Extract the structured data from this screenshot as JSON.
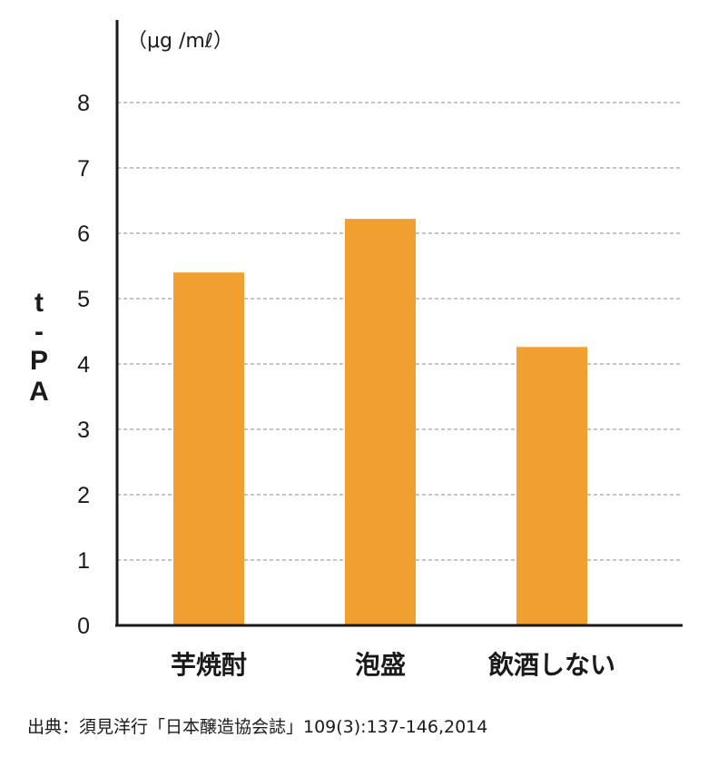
{
  "chart_data": {
    "type": "bar",
    "categories": [
      "芋焼酎",
      "泡盛",
      "飲酒しない"
    ],
    "values": [
      5.4,
      6.22,
      4.26
    ],
    "ylabel": "t-PA",
    "y_unit": "（μg /mℓ）",
    "ylim": [
      0,
      8
    ],
    "yticks": [
      "0",
      "1",
      "2",
      "3",
      "4",
      "5",
      "6",
      "7",
      "8"
    ],
    "grid": true,
    "bar_color": "#F0A030",
    "legend": "none"
  },
  "source_note": "出典：須見洋行「日本醸造協会誌」109(3):137-146,2014"
}
